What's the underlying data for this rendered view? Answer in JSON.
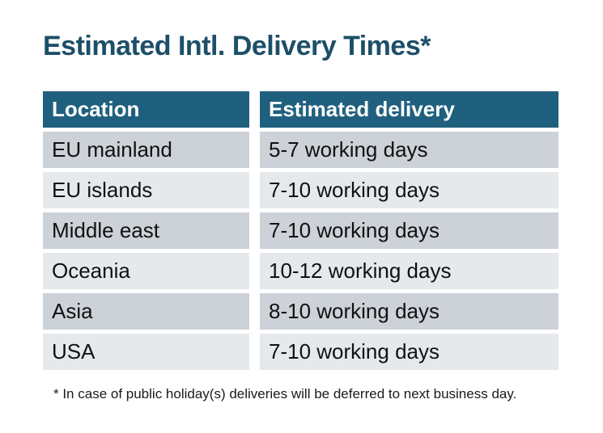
{
  "page": {
    "title": "Estimated Intl. Delivery Times*",
    "footnote": "* In case of public holiday(s) deliveries will be deferred to next business day."
  },
  "table": {
    "headers": {
      "location": "Location",
      "delivery": "Estimated delivery"
    },
    "rows": [
      {
        "location": "EU mainland",
        "delivery": "5-7 working days"
      },
      {
        "location": "EU islands",
        "delivery": "7-10 working days"
      },
      {
        "location": "Middle east",
        "delivery": "7-10 working days"
      },
      {
        "location": "Oceania",
        "delivery": "10-12 working days"
      },
      {
        "location": "Asia",
        "delivery": "8-10 working days"
      },
      {
        "location": "USA",
        "delivery": "7-10 working days"
      }
    ]
  },
  "colors": {
    "title_text": "#1d4f68",
    "header_bg": "#20607f",
    "header_text": "#ffffff",
    "row_dark_bg": "#cdd1d8",
    "row_light_bg": "#e6e9ec",
    "body_text": "#111111"
  }
}
